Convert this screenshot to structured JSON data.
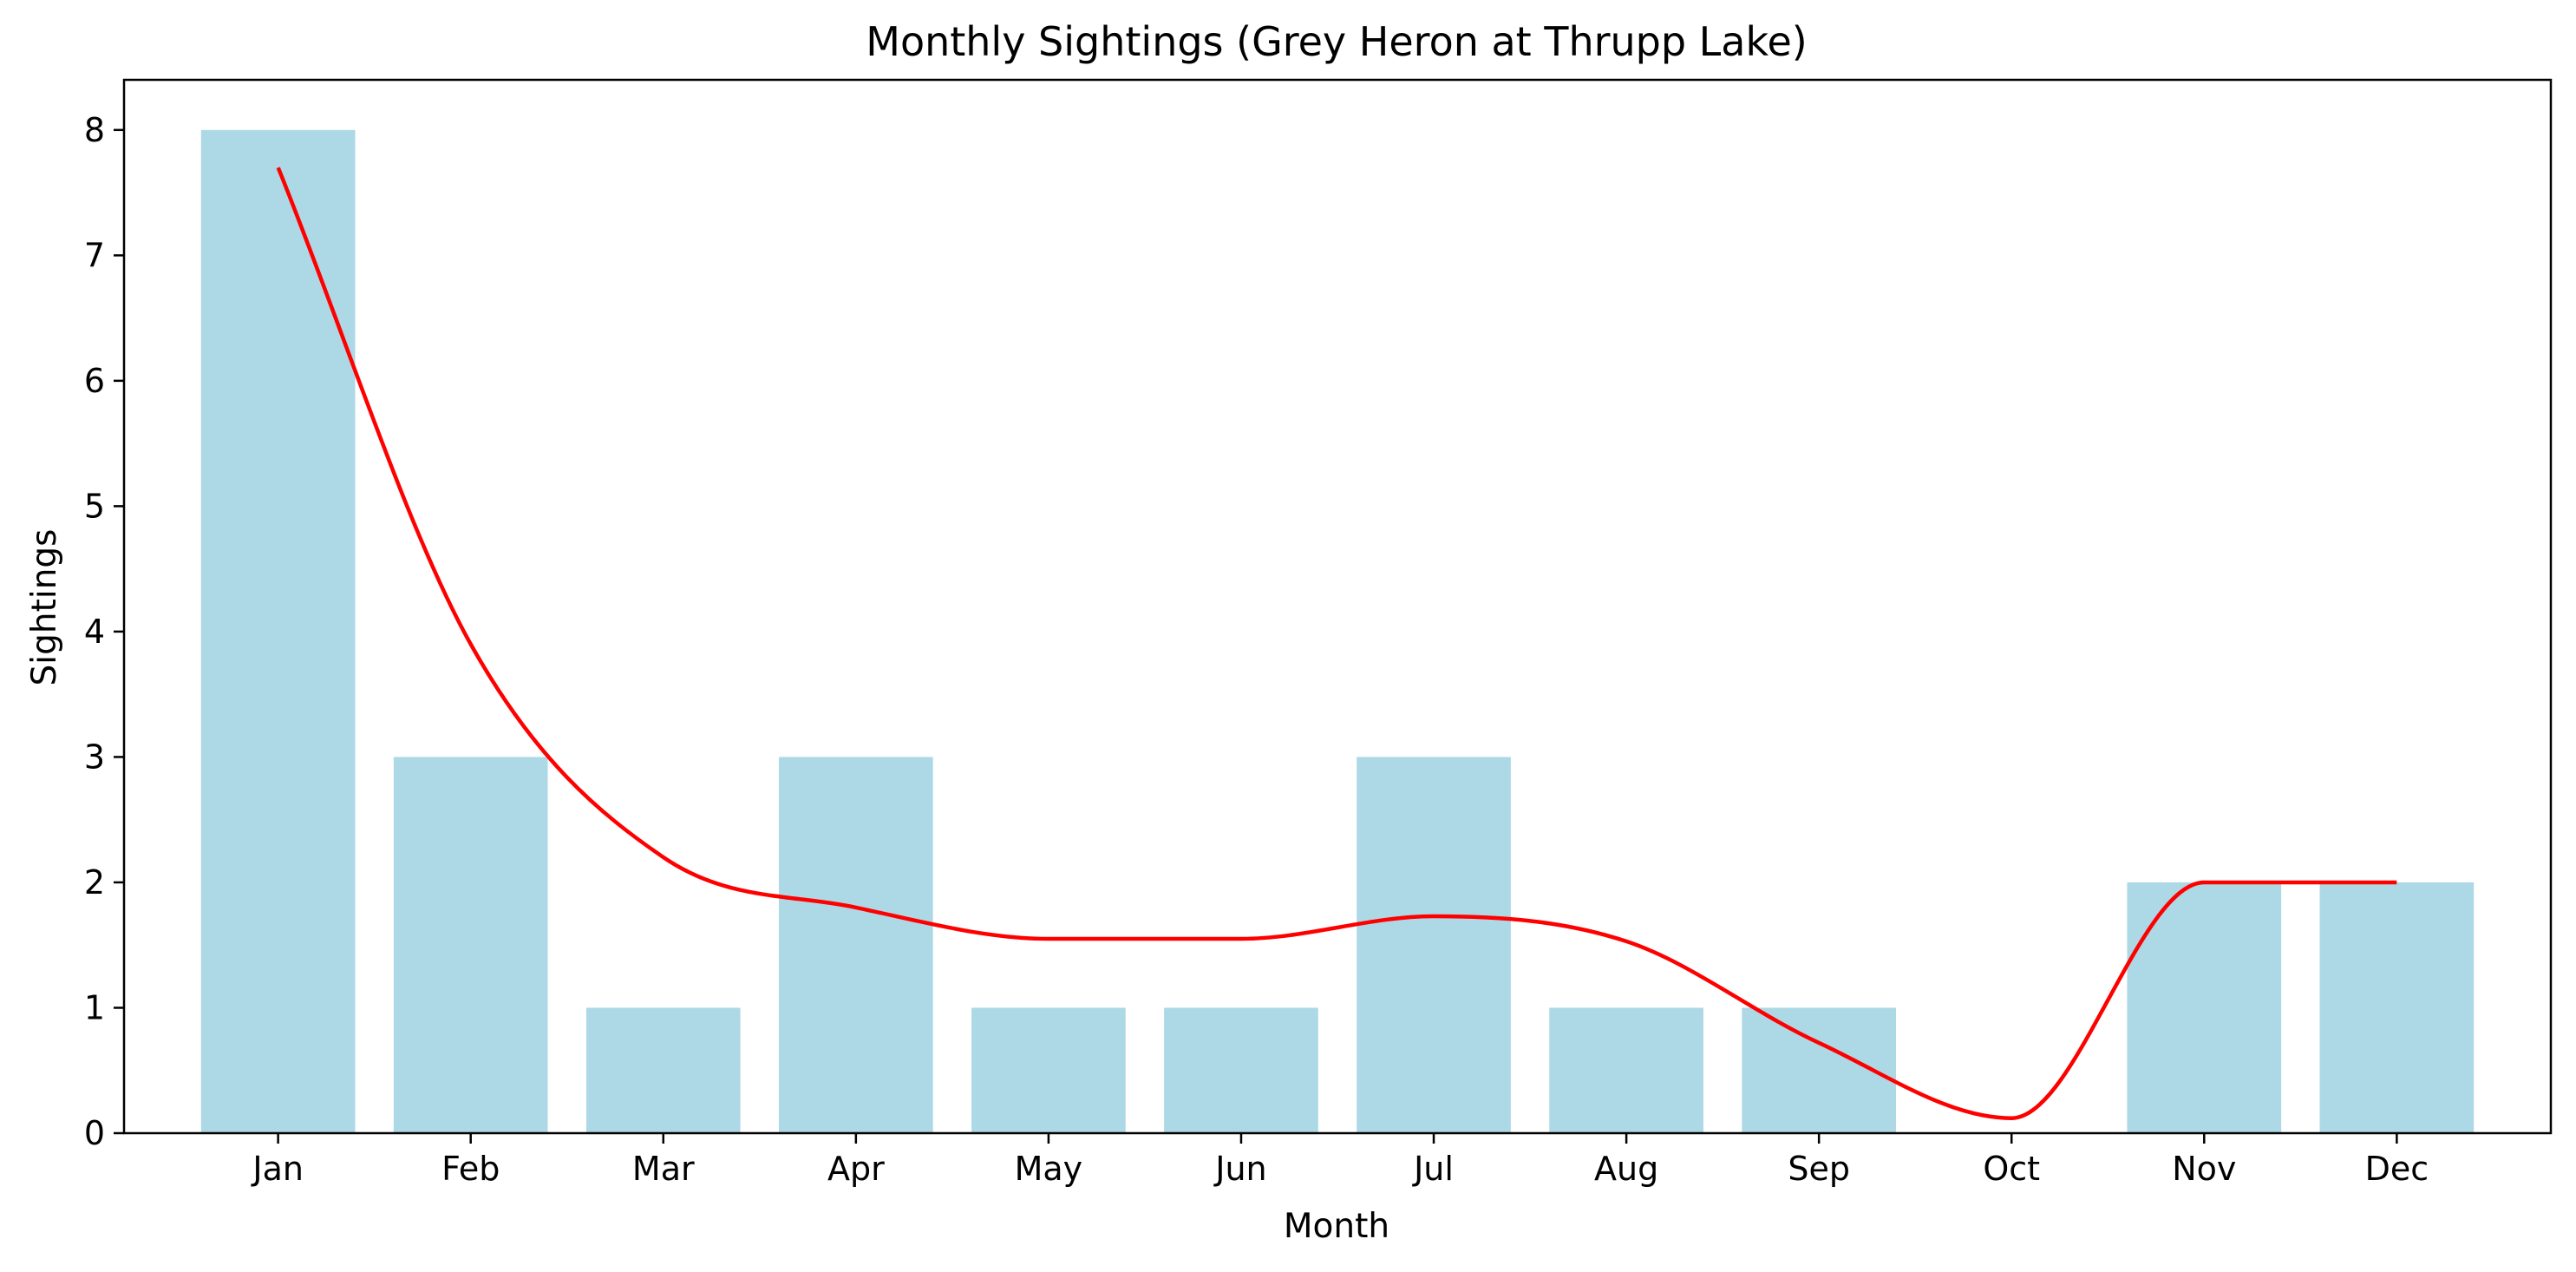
{
  "chart_data": {
    "type": "bar",
    "title": "Monthly Sightings (Grey Heron at Thrupp Lake)",
    "xlabel": "Month",
    "ylabel": "Sightings",
    "categories": [
      "Jan",
      "Feb",
      "Mar",
      "Apr",
      "May",
      "Jun",
      "Jul",
      "Aug",
      "Sep",
      "Oct",
      "Nov",
      "Dec"
    ],
    "series": [
      {
        "type": "bar",
        "values": [
          8,
          3,
          1,
          3,
          1,
          1,
          3,
          1,
          1,
          0,
          2,
          2
        ],
        "color": "#add8e6"
      },
      {
        "type": "line",
        "smooth": true,
        "values": [
          7.7,
          3.9,
          2.2,
          1.8,
          1.55,
          1.55,
          1.73,
          1.53,
          0.72,
          0.12,
          2.0,
          2.0
        ],
        "color": "#ff0000"
      }
    ],
    "ylim": [
      0,
      8.4
    ],
    "yticks": [
      0,
      1,
      2,
      3,
      4,
      5,
      6,
      7,
      8
    ],
    "grid": false,
    "legend": false
  }
}
